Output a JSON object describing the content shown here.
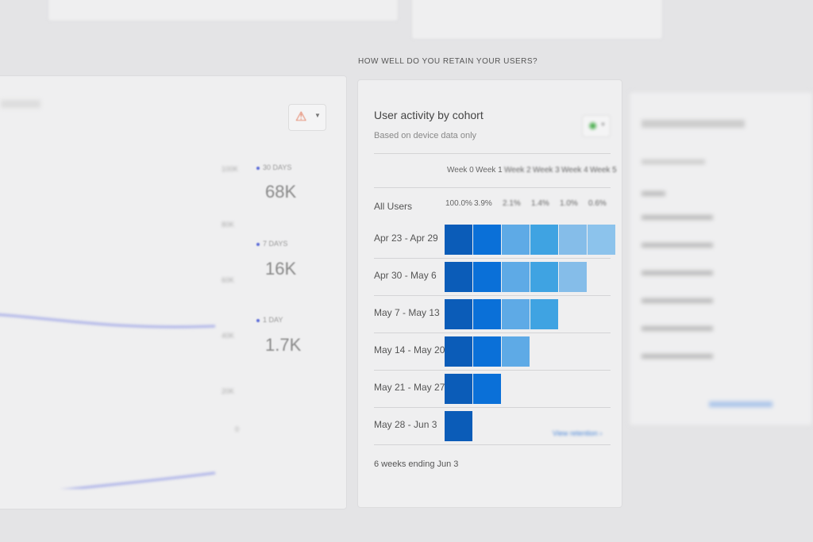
{
  "section_title": "HOW WELL DO YOU RETAIN YOUR USERS?",
  "left_card": {
    "y_ticks": [
      "100K",
      "80K",
      "60K",
      "40K",
      "20K",
      "0"
    ],
    "legend": [
      {
        "label": "30 DAYS",
        "value": "68K"
      },
      {
        "label": "7 DAYS",
        "value": "16K"
      },
      {
        "label": "1 DAY",
        "value": "1.7K"
      }
    ],
    "series_color": "#5b6bd8",
    "alert_icon": "warning-triangle-icon"
  },
  "cohort_card": {
    "title": "User activity by cohort",
    "subtitle": "Based on device data only",
    "weeks": [
      "Week 0",
      "Week 1",
      "Week 2",
      "Week 3",
      "Week 4",
      "Week 5"
    ],
    "all_users_label": "All Users",
    "all_users_values": [
      "100.0%",
      "3.9%",
      "2.1%",
      "1.4%",
      "1.0%",
      "0.6%"
    ],
    "rows": [
      "Apr 23 - Apr 29",
      "Apr 30 - May 6",
      "May 7 - May 13",
      "May 14 - May 20",
      "May 21 - May 27",
      "May 28 - Jun 3"
    ],
    "column_colors": [
      "#0b5cb8",
      "#0a70d8",
      "#5eaae6",
      "#3fa3e2",
      "#85bde9",
      "#8cc3ec"
    ],
    "footer": "6 weeks ending Jun 3",
    "link": "View retention"
  }
}
